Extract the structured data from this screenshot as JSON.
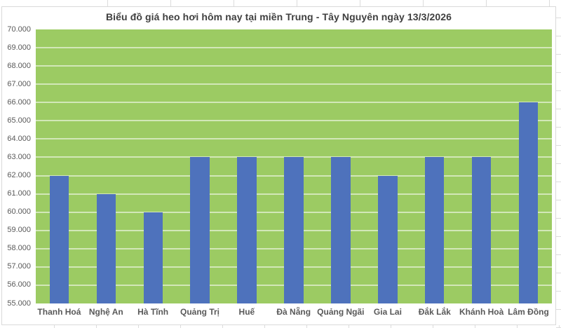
{
  "chart_data": {
    "type": "bar",
    "title": "Biểu đồ giá heo hơi hôm nay tại miền Trung - Tây Nguyên ngày 13/3/2026",
    "categories": [
      "Thanh Hoá",
      "Nghệ An",
      "Hà Tĩnh",
      "Quảng Trị",
      "Huế",
      "Đà Nẵng",
      "Quảng Ngãi",
      "Gia Lai",
      "Đắk Lắk",
      "Khánh Hoà",
      "Lâm Đồng"
    ],
    "values": [
      62000,
      61000,
      60000,
      63000,
      63000,
      63000,
      63000,
      62000,
      63000,
      63000,
      66000
    ],
    "xlabel": "",
    "ylabel": "",
    "ylim": [
      55000,
      70000
    ],
    "ytick_step": 1000,
    "y_tick_labels": [
      "70.000",
      "69.000",
      "68.000",
      "67.000",
      "66.000",
      "65.000",
      "64.000",
      "63.000",
      "62.000",
      "61.000",
      "60.000",
      "59.000",
      "58.000",
      "57.000",
      "56.000",
      "55.000"
    ],
    "grid": true,
    "legend": false,
    "colors": {
      "bar": "#4E72BC",
      "plot_background": "#9CCB63",
      "gridline": "rgba(255,255,255,0.55)",
      "title_text": "#3F3F3F",
      "axis_text": "#595959",
      "chart_border": "#D9D9D9"
    }
  }
}
